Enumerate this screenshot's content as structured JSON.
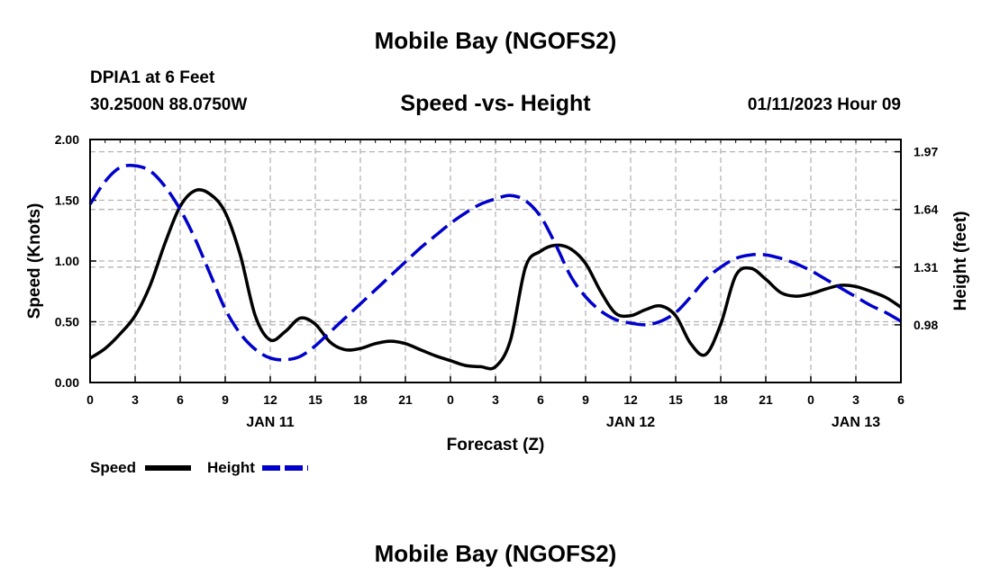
{
  "page": {
    "main_title": "Mobile Bay (NGOFS2)",
    "bottom_title": "Mobile Bay (NGOFS2)",
    "station": "DPIA1 at 6 Feet",
    "coords": "30.2500N  88.0750W",
    "datetime": "01/11/2023 Hour 09"
  },
  "chart_data": {
    "type": "line",
    "title": "Speed -vs- Height",
    "xlabel": "Forecast (Z)",
    "ylabel": "Speed (Knots)",
    "y2label": "Height (feet)",
    "xlim": [
      0,
      54
    ],
    "ylim": [
      0,
      2
    ],
    "y2lim": [
      0.65,
      2.04
    ],
    "x_ticks": [
      0,
      3,
      6,
      9,
      12,
      15,
      18,
      21,
      24,
      27,
      30,
      33,
      36,
      39,
      42,
      45,
      48,
      51,
      54
    ],
    "x_tick_labels": [
      "0",
      "3",
      "6",
      "9",
      "12",
      "15",
      "18",
      "21",
      "0",
      "3",
      "6",
      "9",
      "12",
      "15",
      "18",
      "21",
      "0",
      "3",
      "6"
    ],
    "date_labels": [
      {
        "x": 12,
        "label": "JAN 11"
      },
      {
        "x": 36,
        "label": "JAN 12"
      },
      {
        "x": 51,
        "label": "JAN 13"
      }
    ],
    "y_ticks": [
      0,
      0.5,
      1,
      1.5,
      2
    ],
    "y_tick_labels": [
      "0.00",
      "0.50",
      "1.00",
      "1.50",
      "2.00"
    ],
    "y2_ticks": [
      0.98,
      1.31,
      1.64,
      1.97
    ],
    "y2_tick_labels": [
      "0.98",
      "1.31",
      "1.64",
      "1.97"
    ],
    "grid": true,
    "legend": "bottom-left",
    "series": [
      {
        "name": "Speed",
        "axis": "left",
        "color": "#000000",
        "dash": "solid",
        "x": [
          0,
          1,
          2,
          3,
          4,
          5,
          6,
          7,
          8,
          9,
          10,
          11,
          12,
          13,
          14,
          15,
          16,
          17,
          18,
          19,
          20,
          21,
          22,
          23,
          24,
          25,
          26,
          27,
          28,
          29,
          30,
          31,
          32,
          33,
          34,
          35,
          36,
          37,
          38,
          39,
          40,
          41,
          42,
          43,
          44,
          45,
          46,
          47,
          48,
          49,
          50,
          51,
          52,
          53,
          54
        ],
        "values": [
          0.2,
          0.28,
          0.4,
          0.55,
          0.8,
          1.15,
          1.45,
          1.58,
          1.55,
          1.4,
          1.05,
          0.55,
          0.35,
          0.42,
          0.53,
          0.48,
          0.33,
          0.27,
          0.28,
          0.32,
          0.34,
          0.32,
          0.27,
          0.22,
          0.18,
          0.14,
          0.13,
          0.13,
          0.35,
          0.95,
          1.08,
          1.13,
          1.1,
          0.98,
          0.75,
          0.57,
          0.55,
          0.6,
          0.63,
          0.55,
          0.32,
          0.23,
          0.48,
          0.88,
          0.94,
          0.85,
          0.74,
          0.71,
          0.73,
          0.77,
          0.8,
          0.79,
          0.75,
          0.7,
          0.62
        ]
      },
      {
        "name": "Height",
        "axis": "right",
        "color": "#0000cc",
        "dash": "dashed",
        "x": [
          0,
          1,
          2,
          3,
          4,
          5,
          6,
          7,
          8,
          9,
          10,
          11,
          12,
          13,
          14,
          15,
          16,
          17,
          18,
          19,
          20,
          21,
          22,
          23,
          24,
          25,
          26,
          27,
          28,
          29,
          30,
          31,
          32,
          33,
          34,
          35,
          36,
          37,
          38,
          39,
          40,
          41,
          42,
          43,
          44,
          45,
          46,
          47,
          48,
          49,
          50,
          51,
          52,
          53,
          54
        ],
        "values": [
          1.67,
          1.8,
          1.88,
          1.89,
          1.86,
          1.77,
          1.64,
          1.47,
          1.27,
          1.07,
          0.93,
          0.84,
          0.79,
          0.78,
          0.8,
          0.86,
          0.94,
          1.02,
          1.1,
          1.18,
          1.26,
          1.34,
          1.42,
          1.49,
          1.56,
          1.62,
          1.67,
          1.7,
          1.72,
          1.69,
          1.6,
          1.44,
          1.26,
          1.14,
          1.06,
          1.01,
          0.99,
          0.98,
          1.0,
          1.05,
          1.14,
          1.24,
          1.31,
          1.36,
          1.38,
          1.38,
          1.36,
          1.33,
          1.29,
          1.24,
          1.19,
          1.14,
          1.09,
          1.05,
          1.0
        ]
      }
    ]
  }
}
